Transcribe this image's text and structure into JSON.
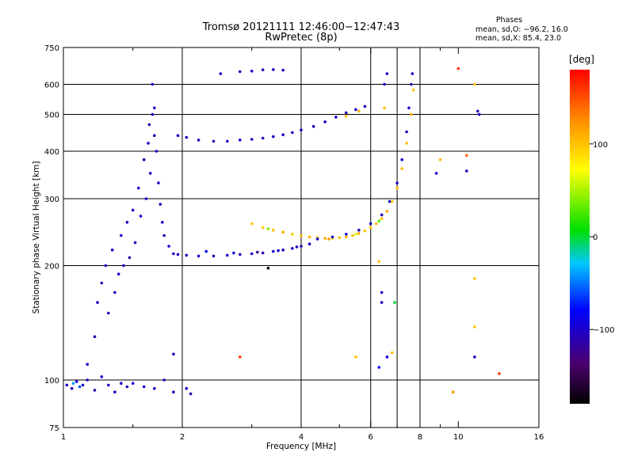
{
  "header": {
    "title_line1": "Tromsø 20121111 12:46:00−12:47:43",
    "title_line2": "RwPretec (8p)"
  },
  "stats": {
    "heading": "Phases",
    "line_o": "mean, sd,O: −96.2, 16.0",
    "line_x": "mean, sd,X:  85.4, 23.0"
  },
  "colorbar": {
    "unit_label": "[deg]",
    "tick_labels": [
      "100",
      "0",
      "−100"
    ],
    "ticks": [
      100,
      0,
      -100
    ],
    "range": [
      -180,
      180
    ]
  },
  "chart_data": {
    "type": "scatter",
    "xlabel": "Frequency [MHz]",
    "ylabel": "Stationary phase Virtual Height [km]",
    "x_scale": "log",
    "y_scale": "log",
    "xlim": [
      1,
      16
    ],
    "ylim": [
      75,
      750
    ],
    "x_ticks": [
      1,
      2,
      4,
      6,
      8,
      10,
      16
    ],
    "x_tick_labels": [
      "1",
      "2",
      "4",
      "6",
      "8",
      "10",
      "16"
    ],
    "x_minor_ticks": [
      1.5,
      3,
      5,
      7,
      9
    ],
    "y_ticks": [
      75,
      100,
      200,
      300,
      400,
      500,
      600,
      750
    ],
    "y_tick_labels": [
      "75",
      "100",
      "200",
      "300",
      "400",
      "500",
      "600",
      "750"
    ],
    "x_gridlines": [
      2,
      4,
      6,
      7,
      8
    ],
    "y_gridlines": [
      100,
      200,
      300,
      400,
      500,
      600
    ],
    "color_by": "phase [deg]",
    "series": [
      {
        "trace": "low-height scatter",
        "points": [
          [
            1.02,
            97,
            -100
          ],
          [
            1.05,
            95,
            -110
          ],
          [
            1.08,
            99,
            -90
          ],
          [
            1.12,
            97,
            -105
          ],
          [
            1.15,
            100,
            -100
          ],
          [
            1.2,
            94,
            -110
          ],
          [
            1.25,
            102,
            -95
          ],
          [
            1.3,
            97,
            -100
          ],
          [
            1.35,
            93,
            -105
          ],
          [
            1.4,
            98,
            -100
          ],
          [
            1.45,
            96,
            -110
          ],
          [
            1.5,
            98,
            -95
          ],
          [
            1.6,
            96,
            -100
          ],
          [
            1.7,
            95,
            -105
          ],
          [
            1.8,
            100,
            -100
          ],
          [
            1.9,
            93,
            -110
          ],
          [
            2.05,
            95,
            -100
          ],
          [
            2.1,
            92,
            -105
          ],
          [
            1.1,
            96,
            -60
          ],
          [
            1.06,
            98,
            -40
          ]
        ]
      },
      {
        "trace": "E-layer spread",
        "points": [
          [
            1.15,
            110,
            -100
          ],
          [
            1.2,
            130,
            -105
          ],
          [
            1.22,
            160,
            -95
          ],
          [
            1.25,
            180,
            -110
          ],
          [
            1.28,
            200,
            -100
          ],
          [
            1.3,
            150,
            -105
          ],
          [
            1.33,
            220,
            -100
          ],
          [
            1.35,
            170,
            -110
          ],
          [
            1.38,
            190,
            -95
          ],
          [
            1.4,
            240,
            -100
          ],
          [
            1.42,
            200,
            -105
          ],
          [
            1.45,
            260,
            -100
          ],
          [
            1.47,
            210,
            -110
          ],
          [
            1.5,
            280,
            -95
          ],
          [
            1.52,
            230,
            -100
          ],
          [
            1.55,
            320,
            -105
          ],
          [
            1.57,
            270,
            -100
          ],
          [
            1.6,
            380,
            -110
          ],
          [
            1.62,
            300,
            -95
          ],
          [
            1.64,
            420,
            -100
          ],
          [
            1.66,
            350,
            -105
          ],
          [
            1.68,
            500,
            -100
          ],
          [
            1.7,
            440,
            -110
          ],
          [
            1.72,
            400,
            -95
          ],
          [
            1.74,
            330,
            -100
          ],
          [
            1.76,
            290,
            -105
          ],
          [
            1.78,
            260,
            -100
          ],
          [
            1.8,
            240,
            -110
          ],
          [
            1.85,
            225,
            -95
          ],
          [
            1.9,
            215,
            -100
          ],
          [
            1.68,
            600,
            -100
          ],
          [
            1.7,
            520,
            -100
          ],
          [
            1.65,
            470,
            -110
          ]
        ]
      },
      {
        "trace": "O-mode F2 lower",
        "points": [
          [
            1.95,
            214,
            -100
          ],
          [
            2.05,
            213,
            -105
          ],
          [
            2.2,
            212,
            -100
          ],
          [
            2.4,
            212,
            -110
          ],
          [
            2.6,
            213,
            -100
          ],
          [
            2.8,
            214,
            -105
          ],
          [
            3.0,
            215,
            -100
          ],
          [
            3.2,
            216,
            -110
          ],
          [
            3.4,
            218,
            -100
          ],
          [
            3.6,
            220,
            -105
          ],
          [
            3.8,
            222,
            -100
          ],
          [
            4.0,
            225,
            -110
          ],
          [
            4.2,
            228,
            -100
          ],
          [
            2.3,
            218,
            -80
          ],
          [
            2.7,
            216,
            -90
          ],
          [
            3.1,
            217,
            -120
          ],
          [
            3.5,
            219,
            -95
          ],
          [
            3.9,
            224,
            -100
          ]
        ]
      },
      {
        "trace": "X-mode F2 lower",
        "points": [
          [
            3.0,
            258,
            100
          ],
          [
            3.2,
            252,
            95
          ],
          [
            3.4,
            248,
            100
          ],
          [
            3.6,
            245,
            110
          ],
          [
            3.8,
            242,
            95
          ],
          [
            4.0,
            240,
            100
          ],
          [
            4.2,
            238,
            105
          ],
          [
            4.4,
            237,
            100
          ],
          [
            4.6,
            236,
            110
          ],
          [
            4.8,
            236,
            95
          ],
          [
            5.0,
            237,
            100
          ],
          [
            5.2,
            238,
            105
          ],
          [
            5.4,
            240,
            100
          ],
          [
            5.6,
            243,
            110
          ],
          [
            5.8,
            247,
            95
          ],
          [
            6.0,
            252,
            100
          ],
          [
            6.2,
            258,
            105
          ],
          [
            6.4,
            266,
            100
          ],
          [
            6.6,
            278,
            110
          ],
          [
            6.8,
            295,
            95
          ],
          [
            7.0,
            320,
            100
          ],
          [
            7.2,
            360,
            105
          ],
          [
            7.4,
            420,
            100
          ],
          [
            7.6,
            500,
            110
          ],
          [
            7.7,
            580,
            95
          ],
          [
            3.3,
            250,
            40
          ],
          [
            4.7,
            235,
            120
          ],
          [
            5.5,
            242,
            60
          ],
          [
            6.3,
            262,
            30
          ]
        ]
      },
      {
        "trace": "O-mode F2 cusp",
        "points": [
          [
            4.4,
            235,
            -100
          ],
          [
            4.8,
            238,
            -105
          ],
          [
            5.2,
            242,
            -100
          ],
          [
            5.6,
            248,
            -110
          ],
          [
            6.0,
            258,
            -100
          ],
          [
            6.4,
            272,
            -105
          ],
          [
            6.7,
            295,
            -100
          ],
          [
            7.0,
            330,
            -110
          ],
          [
            7.2,
            380,
            -100
          ],
          [
            7.4,
            450,
            -105
          ],
          [
            7.5,
            520,
            -100
          ],
          [
            7.6,
            600,
            -110
          ],
          [
            7.65,
            640,
            -100
          ]
        ]
      },
      {
        "trace": "upper echo trace",
        "points": [
          [
            1.95,
            440,
            -100
          ],
          [
            2.05,
            435,
            -105
          ],
          [
            2.2,
            428,
            -100
          ],
          [
            2.4,
            425,
            -110
          ],
          [
            2.6,
            425,
            -100
          ],
          [
            2.8,
            428,
            -105
          ],
          [
            3.0,
            430,
            -100
          ],
          [
            3.2,
            433,
            -110
          ],
          [
            3.4,
            437,
            -100
          ],
          [
            3.6,
            442,
            -105
          ],
          [
            3.8,
            448,
            -100
          ],
          [
            4.0,
            455,
            -110
          ],
          [
            4.3,
            465,
            -100
          ],
          [
            4.6,
            478,
            -105
          ],
          [
            4.9,
            492,
            -100
          ],
          [
            5.2,
            505,
            -110
          ],
          [
            5.5,
            515,
            -100
          ],
          [
            5.8,
            525,
            -105
          ],
          [
            5.2,
            495,
            100
          ],
          [
            5.6,
            510,
            110
          ]
        ]
      },
      {
        "trace": "top trace",
        "points": [
          [
            2.5,
            640,
            -100
          ],
          [
            2.8,
            648,
            -105
          ],
          [
            3.0,
            650,
            -100
          ],
          [
            3.2,
            655,
            -110
          ],
          [
            3.4,
            656,
            -100
          ],
          [
            3.6,
            654,
            -105
          ]
        ]
      },
      {
        "trace": "isolated points",
        "points": [
          [
            6.5,
            600,
            -100
          ],
          [
            6.6,
            640,
            -100
          ],
          [
            6.5,
            520,
            100
          ],
          [
            8.8,
            350,
            -100
          ],
          [
            9.0,
            380,
            100
          ],
          [
            10.5,
            355,
            -100
          ],
          [
            10.5,
            390,
            140
          ],
          [
            11.3,
            500,
            -100
          ],
          [
            11.2,
            510,
            -110
          ],
          [
            11.0,
            600,
            100
          ],
          [
            10.0,
            660,
            160
          ],
          [
            6.4,
            160,
            -100
          ],
          [
            6.4,
            170,
            -100
          ],
          [
            6.6,
            115,
            -100
          ],
          [
            6.8,
            118,
            100
          ],
          [
            6.9,
            160,
            0
          ],
          [
            5.5,
            115,
            100
          ],
          [
            2.8,
            115,
            160
          ],
          [
            1.9,
            117,
            -100
          ],
          [
            3.3,
            197,
            -180
          ],
          [
            6.3,
            205,
            100
          ],
          [
            6.3,
            108,
            -80
          ],
          [
            9.7,
            93,
            120
          ],
          [
            11.0,
            115,
            -100
          ],
          [
            11.0,
            185,
            100
          ],
          [
            12.7,
            104,
            160
          ],
          [
            11.0,
            138,
            100
          ]
        ]
      }
    ]
  }
}
